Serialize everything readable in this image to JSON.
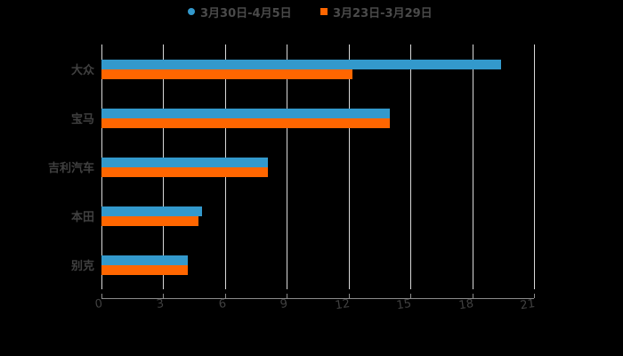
{
  "chart_data": {
    "type": "bar",
    "orientation": "horizontal",
    "title": "",
    "xlabel": "",
    "ylabel": "",
    "categories": [
      "大众",
      "宝马",
      "吉利汽车",
      "本田",
      "别克"
    ],
    "series": [
      {
        "name": "3月30日-4月5日",
        "color": "#3399cc",
        "marker": "circle",
        "values": [
          19.4,
          14.0,
          8.1,
          4.9,
          4.2
        ]
      },
      {
        "name": "3月23日-3月29日",
        "color": "#ff6600",
        "marker": "square",
        "values": [
          12.2,
          14.0,
          8.1,
          4.7,
          4.2
        ]
      }
    ],
    "xlim": [
      0,
      21
    ],
    "xticks": [
      0,
      3,
      6,
      9,
      12,
      15,
      18,
      21
    ],
    "grid": true,
    "legend_position": "top"
  },
  "legend": {
    "items": [
      {
        "label": "3月30日-4月5日",
        "color": "#3399cc"
      },
      {
        "label": "3月23日-3月29日",
        "color": "#ff6600"
      }
    ]
  },
  "colors": {
    "background": "#000000",
    "grid": "#d9d9d9",
    "text": "#404040"
  }
}
